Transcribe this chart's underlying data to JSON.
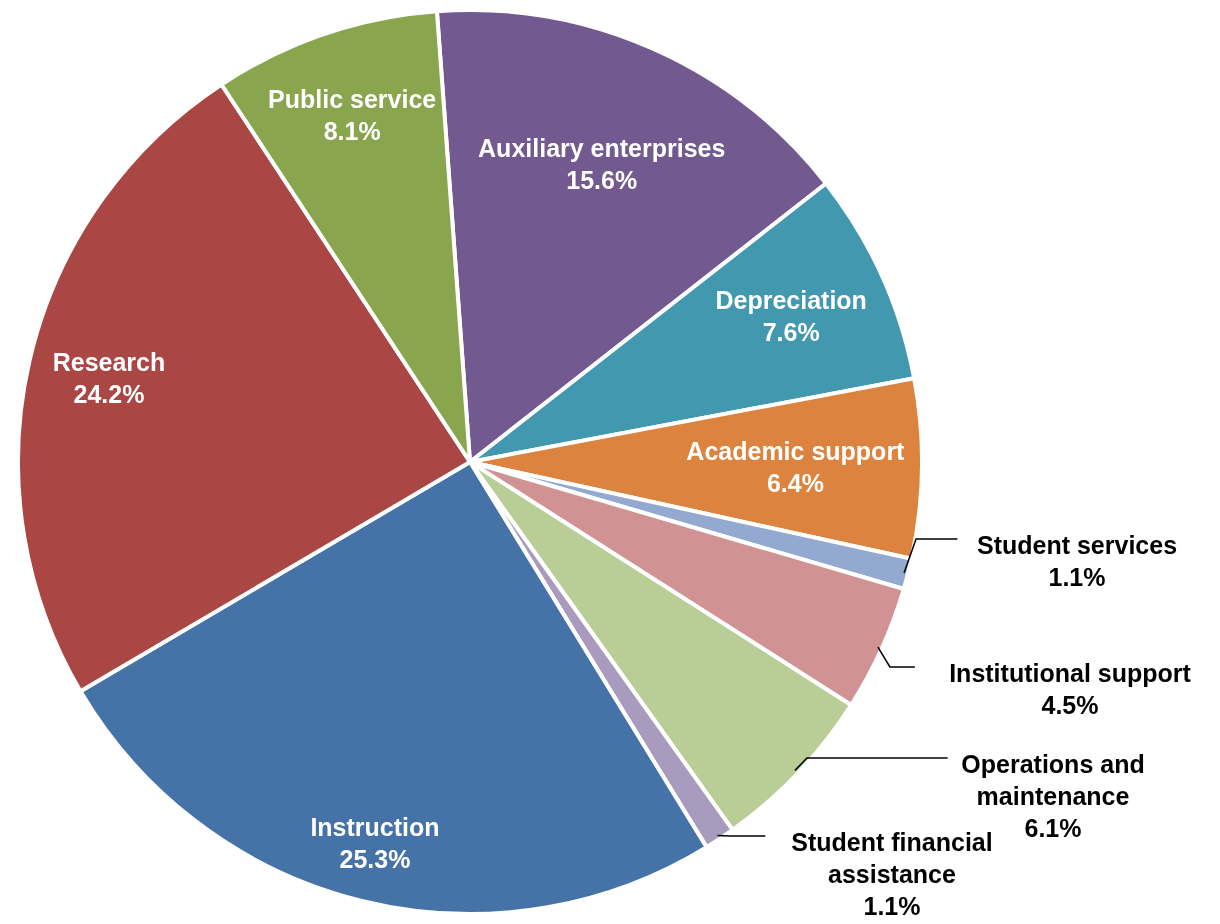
{
  "chart_data": {
    "type": "pie",
    "categories": [
      "Auxiliary enterprises",
      "Depreciation",
      "Academic support",
      "Student services",
      "Institutional support",
      "Operations and maintenance",
      "Student financial assistance",
      "Instruction",
      "Research",
      "Public service"
    ],
    "values": [
      15.6,
      7.6,
      6.4,
      1.1,
      4.5,
      6.1,
      1.1,
      25.3,
      24.2,
      8.1
    ],
    "colors": [
      "#72598f",
      "#4298ae",
      "#dc843f",
      "#93a9cf",
      "#d09293",
      "#b9cd96",
      "#a99bbd",
      "#4573a7",
      "#aa4644",
      "#89a54e"
    ],
    "value_labels": [
      "15.6%",
      "7.6%",
      "6.4%",
      "1.1%",
      "4.5%",
      "6.1%",
      "1.1%",
      "25.3%",
      "24.2%",
      "8.1%"
    ]
  }
}
